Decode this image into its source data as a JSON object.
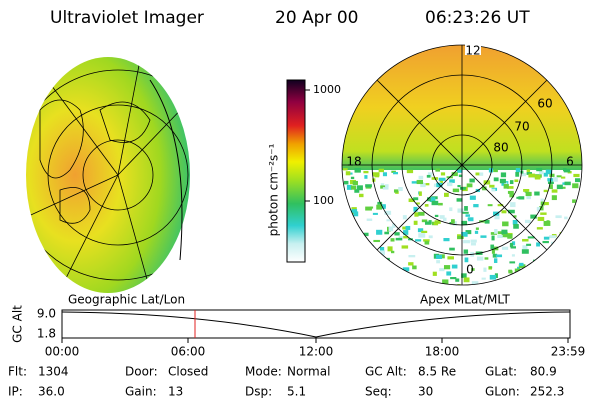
{
  "header": {
    "title": "Ultraviolet Imager",
    "date": "20 Apr 00",
    "time": "06:23:26 UT"
  },
  "colorbar": {
    "label": "photon cm⁻²s⁻¹",
    "ticks": [
      "1000",
      "100"
    ]
  },
  "polar_labels": {
    "top": "12",
    "left": "18",
    "right": "6",
    "bottom": "0",
    "rings": [
      "60",
      "70",
      "80"
    ]
  },
  "timeline": {
    "left_title": "Geographic Lat/Lon",
    "right_title": "Apex MLat/MLT",
    "ylabel": "GC Alt",
    "yticks": [
      "9.0",
      "1.8"
    ],
    "xticks": [
      "00:00",
      "06:00",
      "12:00",
      "18:00",
      "23:59"
    ]
  },
  "status": [
    [
      {
        "label": "Flt:",
        "value": "1304"
      },
      {
        "label": "Door:",
        "value": "Closed"
      },
      {
        "label": "Mode:",
        "value": "Normal"
      },
      {
        "label": "GC Alt:",
        "value": "8.5 Re"
      },
      {
        "label": "GLat:",
        "value": "80.9"
      }
    ],
    [
      {
        "label": "IP:",
        "value": "36.0"
      },
      {
        "label": "Gain:",
        "value": "13"
      },
      {
        "label": "Dsp:",
        "value": "5.1"
      },
      {
        "label": "Seq:",
        "value": "30"
      },
      {
        "label": "GLon:",
        "value": "252.3"
      }
    ]
  ]
}
